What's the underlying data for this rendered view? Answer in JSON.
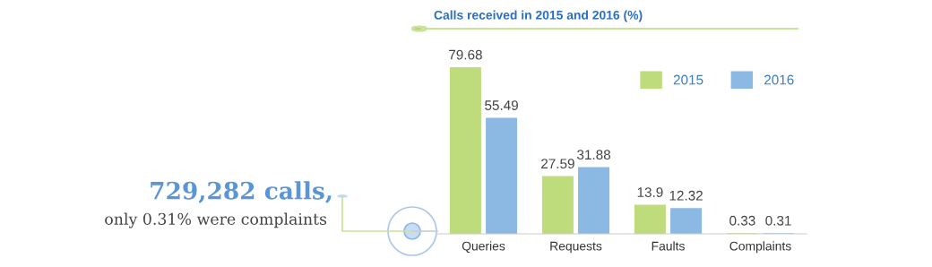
{
  "chart_data": {
    "type": "bar",
    "title": "Calls received in 2015 and 2016 (%)",
    "categories": [
      "Queries",
      "Requests",
      "Faults",
      "Complaints"
    ],
    "series": [
      {
        "name": "2015",
        "color": "#bedc7c",
        "values": [
          79.68,
          27.59,
          13.9,
          0.33
        ]
      },
      {
        "name": "2016",
        "color": "#8cb8e4",
        "values": [
          55.49,
          31.88,
          12.32,
          0.31
        ]
      }
    ],
    "data_labels": true,
    "legend": "top right",
    "grid": false,
    "annotations": [
      "729,282 calls,",
      "only 0.31% were complaints"
    ]
  }
}
